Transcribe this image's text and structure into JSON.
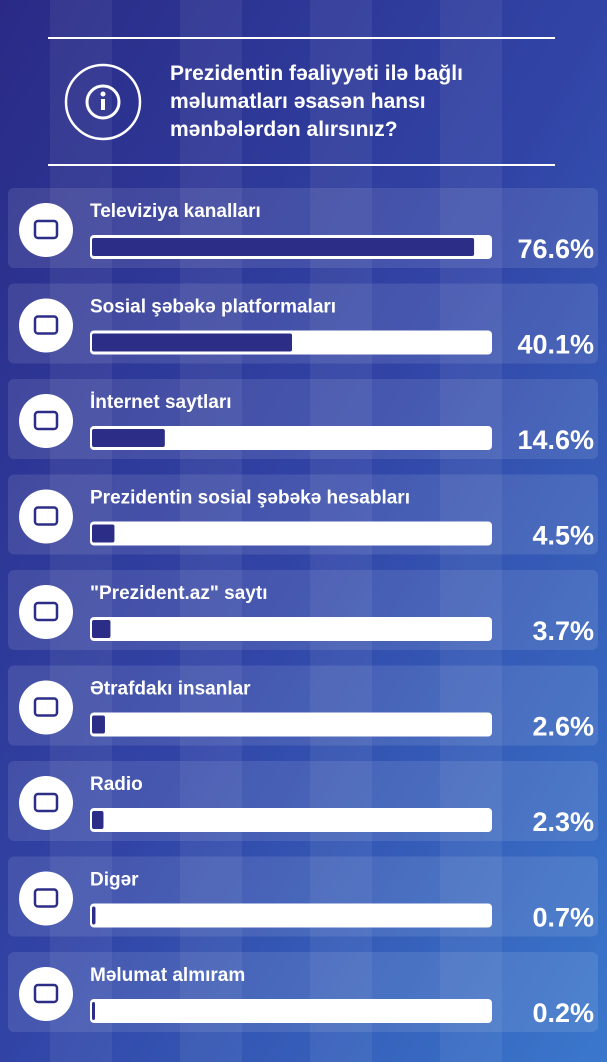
{
  "chart_data": {
    "type": "bar",
    "orientation": "horizontal",
    "title": "Prezidentin fəaliyyəti ilə bağlı məlumatları əsasən hansı mənbələrdən alırsınız?",
    "categories": [
      "Televiziya kanalları",
      "Sosial şəbəkə platformaları",
      "İnternet saytları",
      "Prezidentin sosial şəbəkə hesabları",
      "\"Prezident.az\" saytı",
      "Ətrafdakı insanlar",
      "Radio",
      "Digər",
      "Məlumat almıram"
    ],
    "values": [
      76.6,
      40.1,
      14.6,
      4.5,
      3.7,
      2.6,
      2.3,
      0.7,
      0.2
    ],
    "value_labels": [
      "76.6%",
      "40.1%",
      "14.6%",
      "4.5%",
      "3.7%",
      "2.6%",
      "2.3%",
      "0.7%",
      "0.2%"
    ],
    "color": "#2b2d87"
  }
}
